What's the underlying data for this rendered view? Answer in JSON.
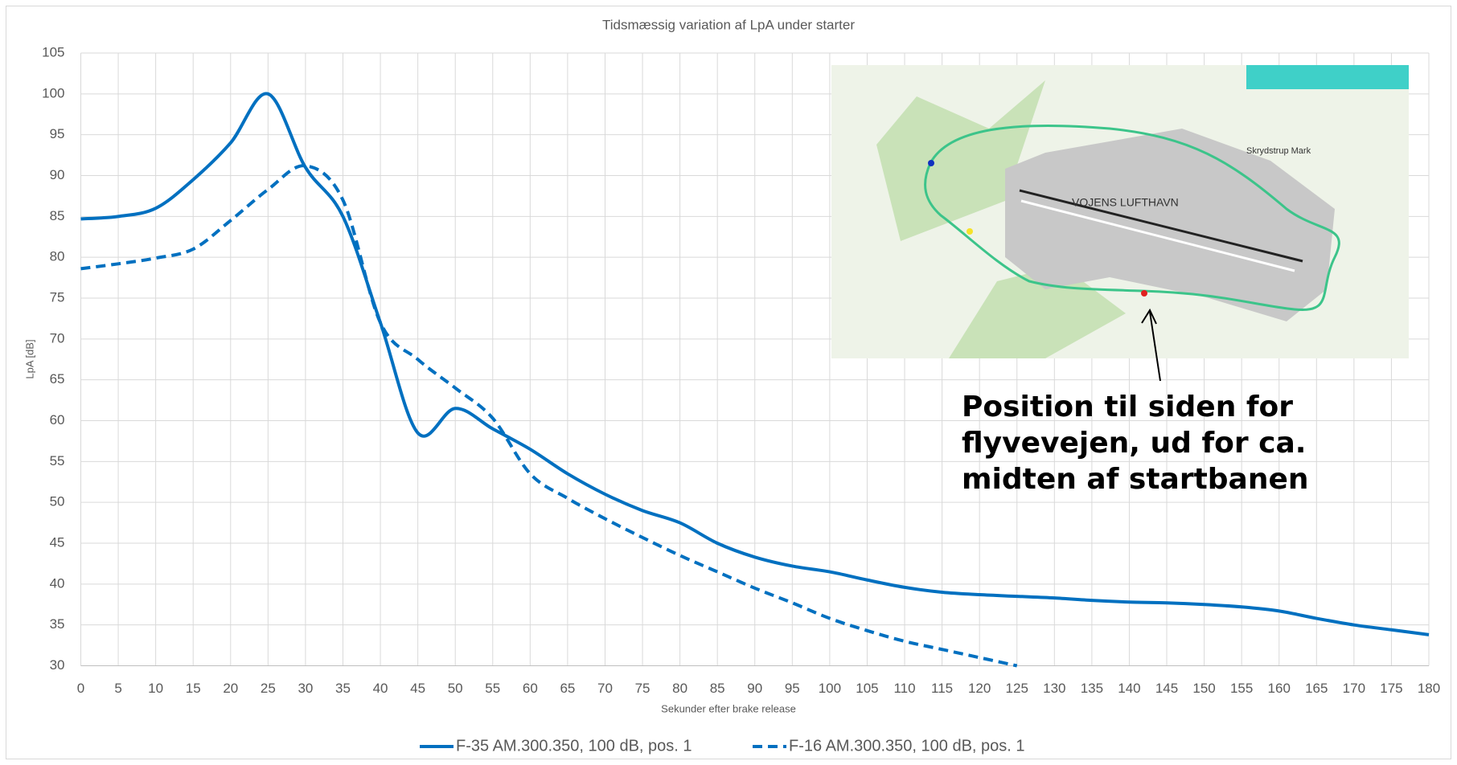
{
  "chart_data": {
    "type": "line",
    "title": "Tidsmæssig variation af LpA under starter",
    "xlabel": "Sekunder efter brake release",
    "ylabel": "LpA [dB]",
    "x": [
      0,
      5,
      10,
      15,
      20,
      25,
      30,
      35,
      40,
      45,
      50,
      55,
      60,
      65,
      70,
      75,
      80,
      85,
      90,
      95,
      100,
      105,
      110,
      115,
      120,
      125,
      130,
      135,
      140,
      145,
      150,
      155,
      160,
      165,
      170,
      175,
      180
    ],
    "series": [
      {
        "name": "F-35 AM.300.350, 100 dB, pos. 1",
        "color": "#0070c0",
        "dash": "solid",
        "values": [
          84.7,
          85,
          86,
          89.5,
          94,
          100,
          91,
          85,
          72,
          58.5,
          61.5,
          59,
          56.5,
          53.5,
          51,
          49,
          47.5,
          45,
          43.3,
          42.2,
          41.5,
          40.5,
          39.6,
          39,
          38.7,
          38.5,
          38.3,
          38,
          37.8,
          37.7,
          37.5,
          37.2,
          36.7,
          35.8,
          35,
          34.4,
          33.8
        ]
      },
      {
        "name": "F-16 AM.300.350, 100 dB, pos. 1",
        "color": "#0070c0",
        "dash": "dashed",
        "values": [
          78.6,
          79.2,
          79.9,
          81,
          84.5,
          88.3,
          91.2,
          87,
          72,
          67.5,
          64,
          60.3,
          53.5,
          50.5,
          48,
          45.7,
          43.5,
          41.5,
          39.5,
          37.7,
          35.8,
          34.3,
          33,
          32,
          31,
          30,
          null,
          null,
          null,
          null,
          null,
          null,
          null,
          null,
          null,
          null,
          null
        ]
      }
    ],
    "xlim": [
      0,
      180
    ],
    "xticks": [
      0,
      5,
      10,
      15,
      20,
      25,
      30,
      35,
      40,
      45,
      50,
      55,
      60,
      65,
      70,
      75,
      80,
      85,
      90,
      95,
      100,
      105,
      110,
      115,
      120,
      125,
      130,
      135,
      140,
      145,
      150,
      155,
      160,
      165,
      170,
      175,
      180
    ],
    "ylim": [
      30,
      105
    ],
    "yticks": [
      30,
      35,
      40,
      45,
      50,
      55,
      60,
      65,
      70,
      75,
      80,
      85,
      90,
      95,
      100,
      105
    ],
    "grid": true,
    "legend": "bottom",
    "annotation": [
      "Position til siden for",
      "flyvevejen, ud for ca.",
      "midten af startbanen"
    ],
    "map_labels": [
      "VOJENS LUFTHAVN",
      "Skrydstrup Mark"
    ]
  }
}
